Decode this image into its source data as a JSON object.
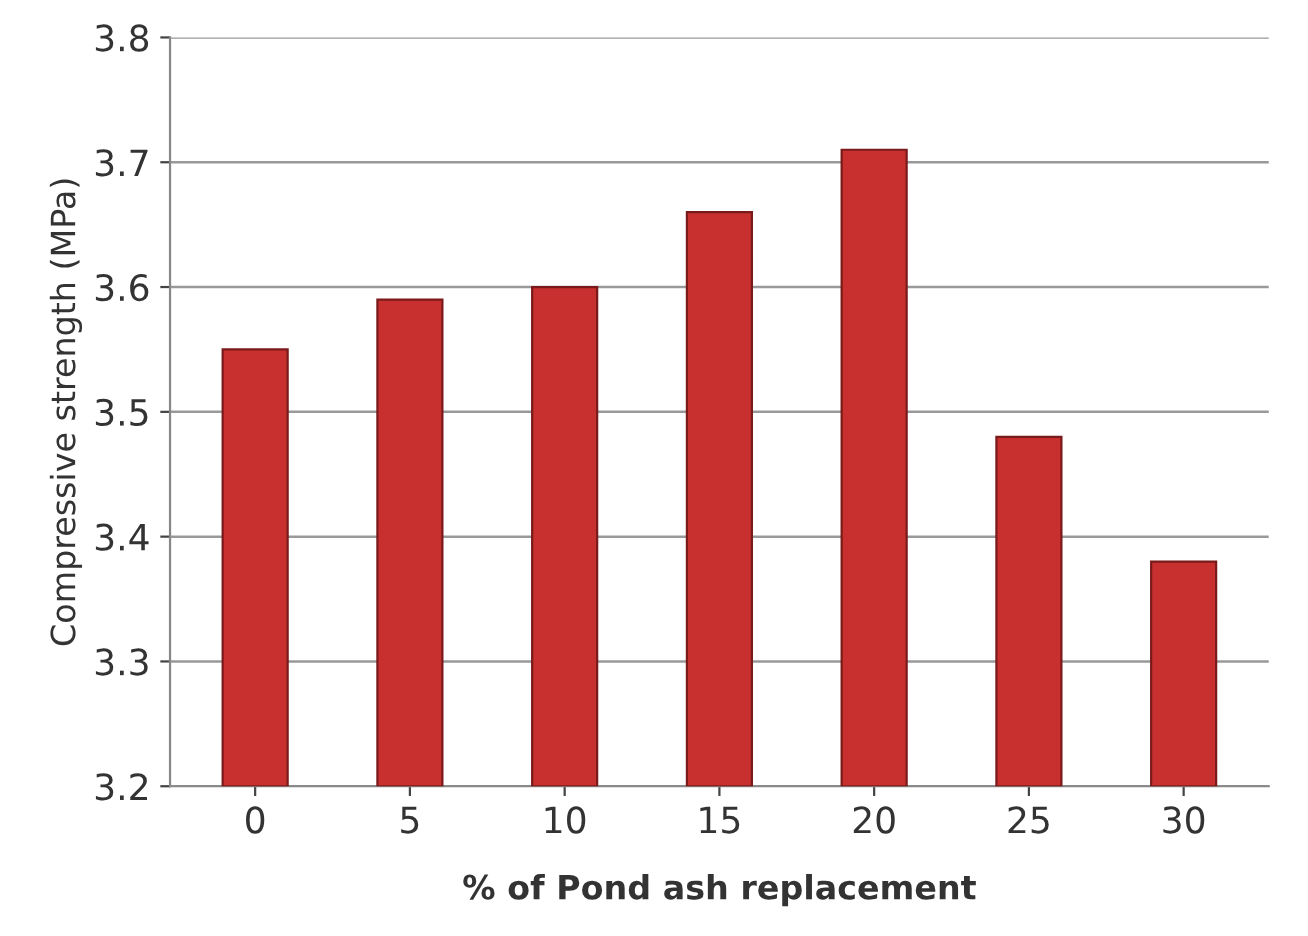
{
  "chart_data": {
    "type": "bar",
    "xlabel": "% of Pond ash replacement",
    "ylabel": "Compressive strength (MPa)",
    "categories": [
      "0",
      "5",
      "10",
      "15",
      "20",
      "25",
      "30"
    ],
    "values": [
      3.55,
      3.59,
      3.6,
      3.66,
      3.71,
      3.48,
      3.38
    ],
    "color": "#c8302f",
    "ylim": [
      3.2,
      3.8
    ],
    "yticks": [
      3.2,
      3.3,
      3.4,
      3.5,
      3.6,
      3.7,
      3.8
    ],
    "grid": "y"
  }
}
